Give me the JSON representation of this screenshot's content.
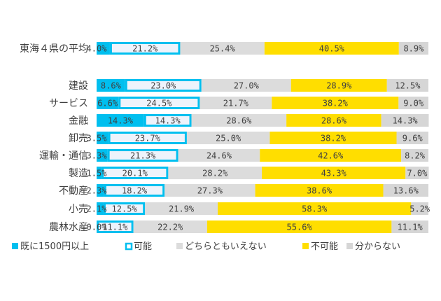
{
  "chart_data": {
    "type": "bar",
    "orientation": "horizontal",
    "stacked": "100%",
    "title": "",
    "categories": [
      "東海４県の平均",
      "建設",
      "サービス",
      "金融",
      "卸売",
      "運輸・通信",
      "製造",
      "不動産",
      "小売",
      "農林水産"
    ],
    "category_gaps_after": [
      "東海４県の平均"
    ],
    "series": [
      {
        "name": "既に1500円以上",
        "values": [
          4.0,
          8.6,
          6.6,
          14.3,
          3.5,
          3.3,
          1.5,
          2.3,
          2.1,
          0.0
        ],
        "labels": [
          "4.0%",
          "8.6%",
          "6.6%",
          "14.3%",
          "3.5%",
          "3.3%",
          "1.5%",
          "2.3%",
          "2.1%",
          "0.0%"
        ]
      },
      {
        "name": "可能",
        "values": [
          21.2,
          23.0,
          24.5,
          14.3,
          23.7,
          21.3,
          20.1,
          18.2,
          12.5,
          11.1
        ],
        "labels": [
          "21.2%",
          "23.0%",
          "24.5%",
          "14.3%",
          "23.7%",
          "21.3%",
          "20.1%",
          "18.2%",
          "12.5%",
          "11.1%"
        ]
      },
      {
        "name": "どちらともいえない",
        "values": [
          25.4,
          27.0,
          21.7,
          28.6,
          25.0,
          24.6,
          28.2,
          27.3,
          21.9,
          22.2
        ],
        "labels": [
          "25.4%",
          "27.0%",
          "21.7%",
          "28.6%",
          "25.0%",
          "24.6%",
          "28.2%",
          "27.3%",
          "21.9%",
          "22.2%"
        ]
      },
      {
        "name": "不可能",
        "values": [
          40.5,
          28.9,
          38.2,
          28.6,
          38.2,
          42.6,
          43.3,
          38.6,
          58.3,
          55.6
        ],
        "labels": [
          "40.5%",
          "28.9%",
          "38.2%",
          "28.6%",
          "38.2%",
          "42.6%",
          "43.3%",
          "38.6%",
          "58.3%",
          "55.6%"
        ]
      },
      {
        "name": "分からない",
        "values": [
          8.9,
          12.5,
          9.0,
          14.3,
          9.6,
          8.2,
          7.0,
          13.6,
          5.2,
          11.1
        ],
        "labels": [
          "8.9%",
          "12.5%",
          "9.0%",
          "14.3%",
          "9.6%",
          "8.2%",
          "7.0%",
          "13.6%",
          "5.2%",
          "11.1%"
        ]
      }
    ],
    "xlim": [
      0,
      100
    ],
    "legend_position": "bottom-left",
    "colors": {
      "already": "#00bfef",
      "possible_fill": "#eef3fb",
      "possible_border": "#00bfef",
      "neutral": "#dcdcdc",
      "impossible": "#ffde00",
      "unknown": "#d6d6d6",
      "text": "#404040"
    }
  }
}
